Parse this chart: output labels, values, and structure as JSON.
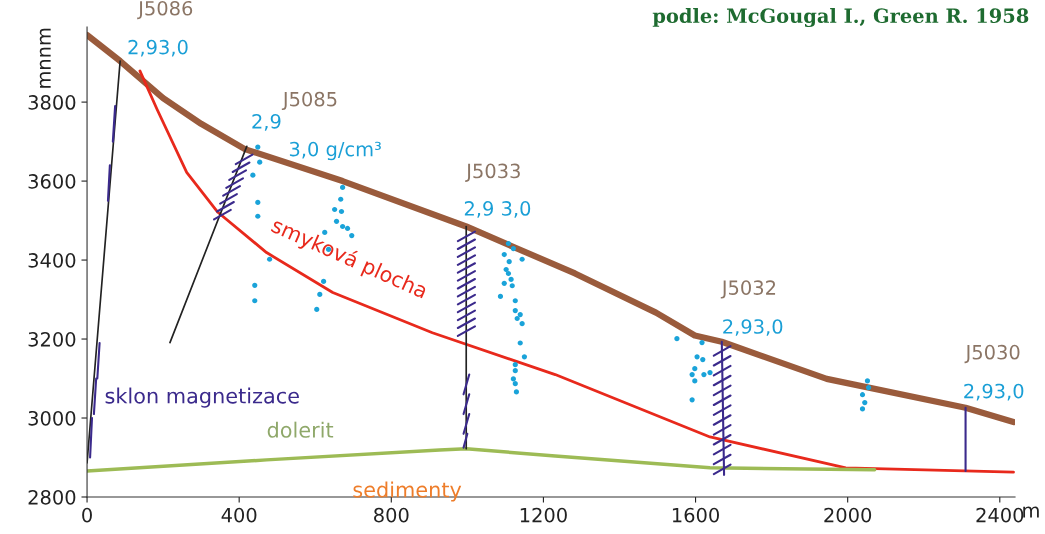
{
  "chart_data": {
    "type": "line",
    "title": "podle: McGougal I., Green R. 1958",
    "xlabel": "m",
    "ylabel": "mnnm",
    "xlim": [
      0,
      2440
    ],
    "ylim": [
      2800,
      3990
    ],
    "xticks": [
      0,
      400,
      800,
      1200,
      1600,
      2000,
      2400
    ],
    "yticks": [
      2800,
      3000,
      3200,
      3400,
      3600,
      3800
    ],
    "series": [
      {
        "color": "#9a5b3c",
        "x": [
          0,
          87,
          200,
          300,
          415,
          672,
          997,
          1283,
          1496,
          1598,
          1669,
          1945,
          2310,
          2436
        ],
        "values": [
          3970,
          3904,
          3810,
          3745,
          3681,
          3600,
          3485,
          3366,
          3267,
          3209,
          3193,
          3099,
          3026,
          2990
        ]
      },
      {
        "color": "#e8291c",
        "x": [
          139,
          184,
          262,
          344,
          472,
          646,
          908,
          1231,
          1638,
          1995,
          2436
        ],
        "values": [
          3879,
          3782,
          3622,
          3521,
          3419,
          3318,
          3216,
          3110,
          2952,
          2874,
          2863
        ]
      },
      {
        "color": "#9dbb55",
        "x": [
          0,
          472,
          927,
          997,
          1231,
          1638,
          2071
        ],
        "values": [
          2866,
          2894,
          2919,
          2922,
          2904,
          2874,
          2869
        ]
      },
      {
        "color": "#222222",
        "x": [
          87,
          0
        ],
        "values": [
          3904,
          2886
        ]
      },
      {
        "color": "#222222",
        "x": [
          420,
          218
        ],
        "values": [
          3688,
          3191
        ]
      },
      {
        "color": "#222222",
        "x": [
          997,
          997
        ],
        "values": [
          3485,
          2922
        ]
      },
      {
        "color": "#3b2a8c",
        "x": [
          1669,
          1675
        ],
        "values": [
          3193,
          2856
        ]
      },
      {
        "color": "#3b2a8c",
        "x": [
          2310,
          2310
        ],
        "values": [
          3026,
          2866
        ]
      },
      {
        "color": "#3b2a8c",
        "x": [
          68,
          74
        ],
        "values": [
          3700,
          3790
        ]
      },
      {
        "color": "#3b2a8c",
        "x": [
          55,
          60
        ],
        "values": [
          3550,
          3640
        ]
      },
      {
        "color": "#3b2a8c",
        "x": [
          18,
          24,
          27,
          33
        ],
        "values": [
          3010,
          3100,
          3100,
          3190
        ]
      },
      {
        "color": "#3b2a8c",
        "x": [
          8,
          13
        ],
        "values": [
          2900,
          3000
        ]
      },
      {
        "color": "#3b2a8c",
        "x": [
          391,
          435
        ],
        "values": [
          3643,
          3667
        ]
      },
      {
        "color": "#3b2a8c",
        "x": [
          383,
          427
        ],
        "values": [
          3623,
          3647
        ]
      },
      {
        "color": "#3b2a8c",
        "x": [
          374,
          418
        ],
        "values": [
          3603,
          3627
        ]
      },
      {
        "color": "#3b2a8c",
        "x": [
          366,
          410
        ],
        "values": [
          3583,
          3607
        ]
      },
      {
        "color": "#3b2a8c",
        "x": [
          358,
          402
        ],
        "values": [
          3563,
          3587
        ]
      },
      {
        "color": "#3b2a8c",
        "x": [
          350,
          394
        ],
        "values": [
          3543,
          3567
        ]
      },
      {
        "color": "#3b2a8c",
        "x": [
          342,
          386
        ],
        "values": [
          3523,
          3547
        ]
      },
      {
        "color": "#3b2a8c",
        "x": [
          334,
          378
        ],
        "values": [
          3503,
          3527
        ]
      },
      {
        "color": "#3b2a8c",
        "x": [
          975,
          1020
        ],
        "values": [
          3448,
          3472
        ]
      },
      {
        "color": "#3b2a8c",
        "x": [
          975,
          1020
        ],
        "values": [
          3428,
          3452
        ]
      },
      {
        "color": "#3b2a8c",
        "x": [
          975,
          1020
        ],
        "values": [
          3408,
          3432
        ]
      },
      {
        "color": "#3b2a8c",
        "x": [
          975,
          1020
        ],
        "values": [
          3388,
          3412
        ]
      },
      {
        "color": "#3b2a8c",
        "x": [
          975,
          1020
        ],
        "values": [
          3368,
          3392
        ]
      },
      {
        "color": "#3b2a8c",
        "x": [
          975,
          1020
        ],
        "values": [
          3348,
          3372
        ]
      },
      {
        "color": "#3b2a8c",
        "x": [
          975,
          1020
        ],
        "values": [
          3328,
          3352
        ]
      },
      {
        "color": "#3b2a8c",
        "x": [
          975,
          1020
        ],
        "values": [
          3308,
          3332
        ]
      },
      {
        "color": "#3b2a8c",
        "x": [
          975,
          1020
        ],
        "values": [
          3288,
          3312
        ]
      },
      {
        "color": "#3b2a8c",
        "x": [
          975,
          1020
        ],
        "values": [
          3268,
          3292
        ]
      },
      {
        "color": "#3b2a8c",
        "x": [
          975,
          1020
        ],
        "values": [
          3248,
          3272
        ]
      },
      {
        "color": "#3b2a8c",
        "x": [
          975,
          1020
        ],
        "values": [
          3228,
          3252
        ]
      },
      {
        "color": "#3b2a8c",
        "x": [
          975,
          1020
        ],
        "values": [
          3208,
          3232
        ]
      },
      {
        "color": "#3b2a8c",
        "x": [
          990,
          1005
        ],
        "values": [
          3060,
          3110
        ]
      },
      {
        "color": "#3b2a8c",
        "x": [
          990,
          1005
        ],
        "values": [
          3010,
          3060
        ]
      },
      {
        "color": "#3b2a8c",
        "x": [
          990,
          1005
        ],
        "values": [
          2960,
          3010
        ]
      },
      {
        "color": "#3b2a8c",
        "x": [
          990,
          1000
        ],
        "values": [
          2925,
          2960
        ]
      },
      {
        "color": "#3b2a8c",
        "x": [
          1648,
          1692
        ],
        "values": [
          3158,
          3182
        ]
      },
      {
        "color": "#3b2a8c",
        "x": [
          1648,
          1692
        ],
        "values": [
          3133,
          3157
        ]
      },
      {
        "color": "#3b2a8c",
        "x": [
          1648,
          1692
        ],
        "values": [
          3108,
          3132
        ]
      },
      {
        "color": "#3b2a8c",
        "x": [
          1648,
          1692
        ],
        "values": [
          3083,
          3107
        ]
      },
      {
        "color": "#3b2a8c",
        "x": [
          1648,
          1692
        ],
        "values": [
          3058,
          3082
        ]
      },
      {
        "color": "#3b2a8c",
        "x": [
          1648,
          1692
        ],
        "values": [
          3033,
          3057
        ]
      },
      {
        "color": "#3b2a8c",
        "x": [
          1648,
          1692
        ],
        "values": [
          3008,
          3032
        ]
      },
      {
        "color": "#3b2a8c",
        "x": [
          1648,
          1692
        ],
        "values": [
          2983,
          3007
        ]
      },
      {
        "color": "#3b2a8c",
        "x": [
          1648,
          1692
        ],
        "values": [
          2958,
          2982
        ]
      },
      {
        "color": "#3b2a8c",
        "x": [
          1648,
          1692
        ],
        "values": [
          2933,
          2957
        ]
      },
      {
        "color": "#3b2a8c",
        "x": [
          1648,
          1692
        ],
        "values": [
          2908,
          2932
        ]
      },
      {
        "color": "#3b2a8c",
        "x": [
          1648,
          1692
        ],
        "values": [
          2883,
          2907
        ]
      },
      {
        "color": "#3b2a8c",
        "x": [
          1648,
          1692
        ],
        "values": [
          2858,
          2882
        ]
      },
      {
        "type": "scatter",
        "marker": "circle",
        "color": "#1aa3d9",
        "x": [
          449,
          454,
          436,
          449,
          449,
          441,
          441,
          480,
          672,
          667,
          651,
          669,
          656,
          672,
          685,
          696,
          625,
          635,
          622,
          612,
          604,
          1108,
          1121,
          1097,
          1144,
          1110,
          1102,
          1108,
          1115,
          1097,
          1118,
          1087,
          1126,
          1126,
          1139,
          1131,
          1144,
          1139,
          1150,
          1126,
          1126,
          1121,
          1126,
          1129,
          1551,
          1617,
          1604,
          1619,
          1598,
          1622,
          1638,
          1591,
          1598,
          1591,
          2052,
          2055,
          2039,
          2045,
          2039
        ],
        "values": [
          3686,
          3648,
          3615,
          3546,
          3511,
          3336,
          3297,
          3402,
          3584,
          3554,
          3528,
          3523,
          3498,
          3485,
          3480,
          3462,
          3470,
          3427,
          3346,
          3313,
          3275,
          3442,
          3429,
          3414,
          3402,
          3396,
          3376,
          3366,
          3351,
          3341,
          3335,
          3308,
          3297,
          3272,
          3262,
          3252,
          3239,
          3190,
          3155,
          3135,
          3120,
          3099,
          3087,
          3066,
          3201,
          3191,
          3155,
          3148,
          3125,
          3110,
          3115,
          3110,
          3094,
          3046,
          3094,
          3077,
          3059,
          3039,
          3023
        ]
      }
    ],
    "annotations": [
      {
        "text": "J5086",
        "x": 87,
        "y": 3904
      },
      {
        "text": "2,93,0",
        "x": 87,
        "y": 3904
      },
      "J5085",
      {
        "text": "2,9",
        "x": 420,
        "y": 3688
      },
      {
        "text": "3,0 g/cm³",
        "x": 420,
        "y": 3688
      },
      {
        "text": "J5033",
        "x": 997,
        "y": 3485
      },
      {
        "text": "2,9 3,0",
        "x": 997,
        "y": 3485
      },
      {
        "text": "J5032",
        "x": 1669,
        "y": 3193
      },
      {
        "text": "2,93,0",
        "x": 1669,
        "y": 3193
      },
      {
        "text": "J5030",
        "x": 2310,
        "y": 3026
      },
      {
        "text": "2,93,0",
        "x": 2310,
        "y": 3026
      },
      {
        "text": "smyková plocha",
        "x": 472,
        "y": 3419
      },
      {
        "text": "sklon magnetizace",
        "x": 24,
        "y": 3100
      },
      {
        "text": "dolerit",
        "x": 472,
        "y": 2894
      },
      {
        "text": "sedimenty",
        "x": 997,
        "y": 2922
      }
    ]
  }
}
